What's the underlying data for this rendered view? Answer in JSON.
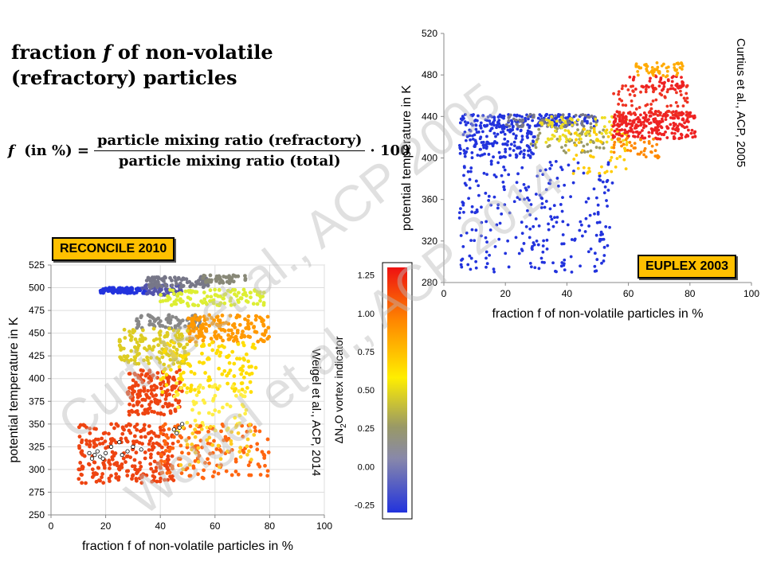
{
  "heading": {
    "line1": "fraction f of non-volatile",
    "line2": "(refractory) particles"
  },
  "formula": {
    "lhs": "f  (in %) =",
    "numerator": "particle mixing ratio (refractory)",
    "denominator": "particle mixing ratio (total)",
    "multiplier": "· 100"
  },
  "watermarks": [
    "Curtius et al., ACP 2005",
    "Weigel et al., ACP 2014"
  ],
  "colors": {
    "low": "#2233dd",
    "mid_low": "#888888",
    "mid": "#ffee00",
    "high": "#ff8800",
    "top": "#ee1111",
    "badge": "#ffc000"
  },
  "chart_data": [
    {
      "type": "scatter",
      "name": "EUPLEX",
      "badge": "EUPLEX 2003",
      "citation": "Curtius et al., ACP, 2005",
      "xlabel": "fraction f of non-volatile particles in %",
      "ylabel": "potential temperature in K",
      "xlim": [
        0,
        100
      ],
      "ylim": [
        280,
        520
      ],
      "xticks": [
        0,
        20,
        40,
        60,
        80,
        100
      ],
      "yticks": [
        280,
        320,
        360,
        400,
        440,
        480,
        520
      ],
      "grid": false,
      "clusters": [
        {
          "x": [
            5,
            50
          ],
          "y": [
            430,
            442
          ],
          "c": "#2233dd",
          "n": 180
        },
        {
          "x": [
            5,
            30
          ],
          "y": [
            400,
            432
          ],
          "c": "#2233dd",
          "n": 160
        },
        {
          "x": [
            5,
            55
          ],
          "y": [
            290,
            400
          ],
          "c": "#2233dd",
          "n": 260
        },
        {
          "x": [
            20,
            50
          ],
          "y": [
            430,
            442
          ],
          "c": "#777788",
          "n": 70
        },
        {
          "x": [
            28,
            52
          ],
          "y": [
            405,
            432
          ],
          "c": "#999966",
          "n": 60
        },
        {
          "x": [
            30,
            60
          ],
          "y": [
            415,
            440
          ],
          "c": "#eedd22",
          "n": 90
        },
        {
          "x": [
            40,
            60
          ],
          "y": [
            385,
            430
          ],
          "c": "#ffcc00",
          "n": 50
        },
        {
          "x": [
            55,
            82
          ],
          "y": [
            418,
            445
          ],
          "c": "#ee2222",
          "n": 260
        },
        {
          "x": [
            55,
            80
          ],
          "y": [
            440,
            470
          ],
          "c": "#ee3322",
          "n": 80
        },
        {
          "x": [
            60,
            78
          ],
          "y": [
            465,
            480
          ],
          "c": "#ee2222",
          "n": 50
        },
        {
          "x": [
            62,
            78
          ],
          "y": [
            478,
            492
          ],
          "c": "#ffaa00",
          "n": 55
        },
        {
          "x": [
            55,
            70
          ],
          "y": [
            400,
            420
          ],
          "c": "#ff8800",
          "n": 40
        }
      ]
    },
    {
      "type": "scatter",
      "name": "RECONCILE",
      "badge": "RECONCILE 2010",
      "citation": "Weigel et al., ACP, 2014",
      "xlabel": "fraction f of non-volatile particles in %",
      "ylabel": "potential temperature in K",
      "xlim": [
        0,
        100
      ],
      "ylim": [
        250,
        525
      ],
      "xticks": [
        0,
        20,
        40,
        60,
        80,
        100
      ],
      "yticks": [
        250,
        275,
        300,
        325,
        350,
        375,
        400,
        425,
        450,
        475,
        500,
        525
      ],
      "grid": true,
      "clusters": [
        {
          "x": [
            18,
            35
          ],
          "y": [
            494,
            500
          ],
          "c": "#2233dd",
          "n": 90
        },
        {
          "x": [
            32,
            48
          ],
          "y": [
            492,
            503
          ],
          "c": "#5555aa",
          "n": 60
        },
        {
          "x": [
            35,
            58
          ],
          "y": [
            500,
            512
          ],
          "c": "#777788",
          "n": 80
        },
        {
          "x": [
            55,
            72
          ],
          "y": [
            505,
            514
          ],
          "c": "#888877",
          "n": 40
        },
        {
          "x": [
            40,
            78
          ],
          "y": [
            480,
            498
          ],
          "c": "#ddee33",
          "n": 110
        },
        {
          "x": [
            30,
            55
          ],
          "y": [
            455,
            470
          ],
          "c": "#888888",
          "n": 80
        },
        {
          "x": [
            50,
            80
          ],
          "y": [
            440,
            470
          ],
          "c": "#ff9900",
          "n": 150
        },
        {
          "x": [
            25,
            50
          ],
          "y": [
            415,
            455
          ],
          "c": "#ddcc22",
          "n": 150
        },
        {
          "x": [
            28,
            48
          ],
          "y": [
            360,
            410
          ],
          "c": "#ee4411",
          "n": 160
        },
        {
          "x": [
            40,
            75
          ],
          "y": [
            385,
            440
          ],
          "c": "#ffdd00",
          "n": 130
        },
        {
          "x": [
            45,
            72
          ],
          "y": [
            340,
            395
          ],
          "c": "#ffee44",
          "n": 60
        },
        {
          "x": [
            10,
            45
          ],
          "y": [
            285,
            350
          ],
          "c": "#ee4411",
          "n": 260
        },
        {
          "x": [
            40,
            80
          ],
          "y": [
            290,
            350
          ],
          "c": "#ff6611",
          "n": 140
        },
        {
          "x": [
            45,
            75
          ],
          "y": [
            300,
            350
          ],
          "c": "#ffcc22",
          "n": 40
        }
      ],
      "open_points": [
        [
          14,
          318
        ],
        [
          16,
          316
        ],
        [
          15,
          312
        ],
        [
          18,
          314
        ],
        [
          20,
          318
        ],
        [
          22,
          325
        ],
        [
          25,
          330
        ],
        [
          26,
          316
        ],
        [
          28,
          320
        ],
        [
          30,
          325
        ],
        [
          33,
          322
        ],
        [
          17,
          320
        ],
        [
          19,
          312
        ],
        [
          46,
          340
        ],
        [
          47,
          346
        ],
        [
          48,
          350
        ],
        [
          45,
          344
        ]
      ]
    }
  ],
  "colorbar": {
    "label": "ΔN₂O vortex indicator",
    "label_main": "ΔN",
    "label_sub": "2",
    "label_rest": "O vortex indicator",
    "ticks": [
      1.25,
      1.0,
      0.75,
      0.5,
      0.25,
      0.0,
      -0.25
    ],
    "tick_labels": [
      "1.25",
      "1.00",
      "0.75",
      "0.50",
      "0.25",
      "0.00",
      "-0.25"
    ],
    "range": [
      -0.3,
      1.3
    ]
  }
}
